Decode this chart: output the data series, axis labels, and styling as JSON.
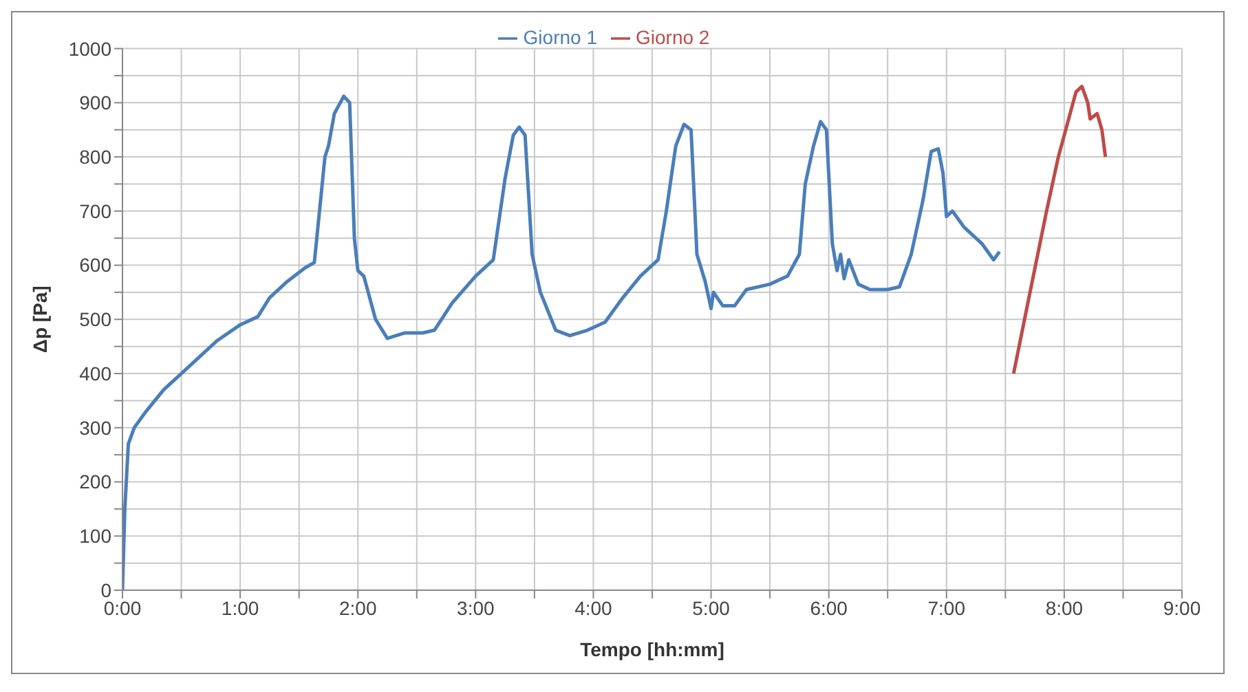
{
  "chart_data": {
    "type": "line",
    "xlabel": "Tempo [hh:mm]",
    "ylabel": "Δp [Pa]",
    "xlim": [
      0,
      9
    ],
    "xticks": [
      {
        "value": 0,
        "label": "0:00"
      },
      {
        "value": 0.5,
        "label": null
      },
      {
        "value": 1,
        "label": "1:00"
      },
      {
        "value": 1.5,
        "label": null
      },
      {
        "value": 2,
        "label": "2:00"
      },
      {
        "value": 2.5,
        "label": null
      },
      {
        "value": 3,
        "label": "3:00"
      },
      {
        "value": 3.5,
        "label": null
      },
      {
        "value": 4,
        "label": "4:00"
      },
      {
        "value": 4.5,
        "label": null
      },
      {
        "value": 5,
        "label": "5:00"
      },
      {
        "value": 5.5,
        "label": null
      },
      {
        "value": 6,
        "label": "6:00"
      },
      {
        "value": 6.5,
        "label": null
      },
      {
        "value": 7,
        "label": "7:00"
      },
      {
        "value": 7.5,
        "label": null
      },
      {
        "value": 8,
        "label": "8:00"
      },
      {
        "value": 8.5,
        "label": null
      },
      {
        "value": 9,
        "label": "9:00"
      }
    ],
    "ylim": [
      0,
      1000
    ],
    "yticks": [
      0,
      {
        "value": 50,
        "label": null
      },
      100,
      {
        "value": 150,
        "label": null
      },
      200,
      {
        "value": 250,
        "label": null
      },
      300,
      {
        "value": 350,
        "label": null
      },
      400,
      {
        "value": 450,
        "label": null
      },
      500,
      {
        "value": 550,
        "label": null
      },
      600,
      {
        "value": 650,
        "label": null
      },
      700,
      {
        "value": 750,
        "label": null
      },
      800,
      {
        "value": 850,
        "label": null
      },
      900,
      {
        "value": 950,
        "label": null
      },
      1000
    ],
    "grid": true,
    "legend": "top",
    "marker": "none",
    "line_style": "solid",
    "series": [
      {
        "name": "Giorno 1",
        "color": "#4a7ebb",
        "x": [
          0,
          0.02,
          0.05,
          0.1,
          0.2,
          0.35,
          0.6,
          0.8,
          1.0,
          1.15,
          1.25,
          1.4,
          1.55,
          1.63,
          1.72,
          1.75,
          1.8,
          1.88,
          1.93,
          1.97,
          2.0,
          2.05,
          2.15,
          2.25,
          2.4,
          2.55,
          2.65,
          2.8,
          3.0,
          3.1,
          3.15,
          3.25,
          3.32,
          3.37,
          3.42,
          3.48,
          3.55,
          3.68,
          3.8,
          3.95,
          4.1,
          4.25,
          4.4,
          4.55,
          4.62,
          4.7,
          4.77,
          4.83,
          4.88,
          4.95,
          5.0,
          5.02,
          5.1,
          5.2,
          5.3,
          5.5,
          5.65,
          5.75,
          5.8,
          5.87,
          5.93,
          5.98,
          6.03,
          6.07,
          6.1,
          6.13,
          6.17,
          6.25,
          6.35,
          6.5,
          6.6,
          6.7,
          6.8,
          6.87,
          6.93,
          6.97,
          7.0,
          7.05,
          7.15,
          7.3,
          7.4,
          7.45
        ],
        "values": [
          0,
          150,
          270,
          300,
          330,
          370,
          420,
          460,
          490,
          505,
          540,
          570,
          595,
          605,
          800,
          820,
          880,
          912,
          900,
          650,
          590,
          580,
          500,
          465,
          475,
          475,
          480,
          530,
          580,
          600,
          610,
          760,
          840,
          855,
          840,
          620,
          550,
          480,
          470,
          480,
          495,
          540,
          580,
          610,
          700,
          820,
          860,
          850,
          620,
          570,
          520,
          550,
          525,
          525,
          555,
          565,
          580,
          620,
          750,
          820,
          865,
          850,
          640,
          590,
          620,
          575,
          610,
          565,
          555,
          555,
          560,
          620,
          720,
          810,
          815,
          770,
          690,
          700,
          670,
          640,
          610,
          625
        ]
      },
      {
        "name": "Giorno 2",
        "color": "#be4b48",
        "x": [
          7.57,
          7.7,
          7.85,
          7.95,
          8.05,
          8.1,
          8.15,
          8.2,
          8.22,
          8.28,
          8.32,
          8.35
        ],
        "values": [
          400,
          540,
          700,
          800,
          880,
          920,
          930,
          900,
          870,
          880,
          850,
          800
        ]
      }
    ]
  }
}
